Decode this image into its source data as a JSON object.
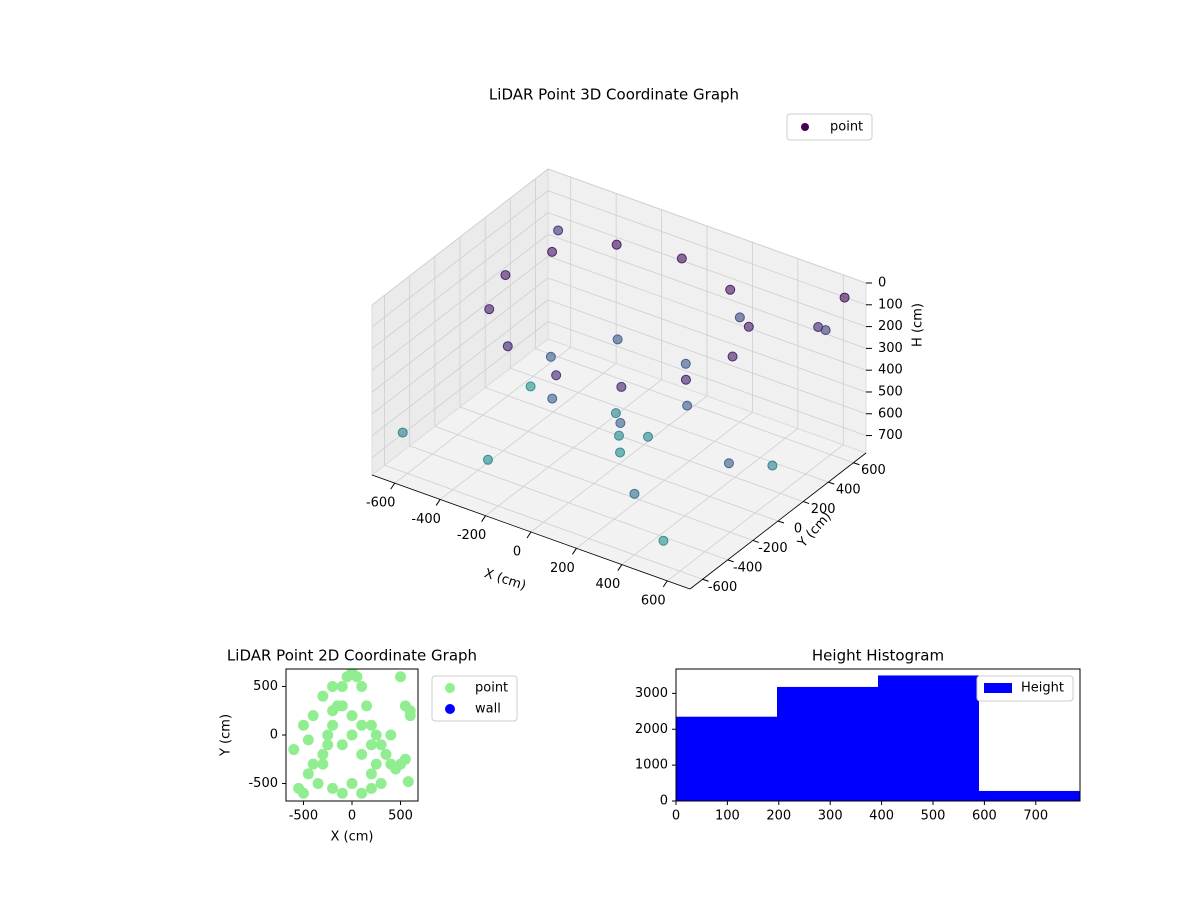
{
  "chart_data": [
    {
      "type": "scatter3d",
      "title": "LiDAR Point 3D Coordinate Graph",
      "xlabel": "X (cm)",
      "ylabel": "Y (cm)",
      "zlabel": "H (cm)",
      "colormap": "viridis",
      "legend": "upper right",
      "series": [
        {
          "name": "point",
          "color": "#440154",
          "x": [
            500,
            433,
            250,
            0,
            -250,
            -433,
            -500,
            -433,
            -250,
            0,
            250,
            433,
            300,
            150,
            -150,
            -300,
            -150,
            150,
            0,
            100,
            -80,
            60,
            650,
            600,
            550,
            -620,
            -500,
            400,
            650,
            -300,
            200,
            -600,
            620,
            500
          ],
          "y": [
            0,
            250,
            433,
            500,
            433,
            250,
            0,
            -250,
            -433,
            -500,
            -433,
            -250,
            0,
            260,
            260,
            0,
            -260,
            -260,
            0,
            50,
            120,
            -100,
            620,
            500,
            650,
            -600,
            200,
            -600,
            -300,
            -500,
            600,
            600,
            100,
            -550
          ],
          "h": [
            100,
            100,
            80,
            60,
            60,
            80,
            100,
            120,
            140,
            150,
            140,
            120,
            400,
            380,
            380,
            400,
            420,
            420,
            650,
            640,
            630,
            660,
            50,
            150,
            250,
            600,
            700,
            500,
            400,
            650,
            300,
            200,
            600,
            700
          ]
        }
      ],
      "xlim": [
        -700,
        700
      ],
      "ylim": [
        -700,
        700
      ],
      "zlim": [
        780,
        0
      ],
      "xticks": [
        -600,
        -400,
        -200,
        0,
        200,
        400,
        600
      ],
      "yticks": [
        -600,
        -400,
        -200,
        0,
        200,
        400,
        600
      ],
      "zticks": [
        0,
        100,
        200,
        300,
        400,
        500,
        600,
        700
      ]
    },
    {
      "type": "scatter",
      "title": "LiDAR Point 2D Coordinate Graph",
      "xlabel": "X (cm)",
      "ylabel": "Y (cm)",
      "legend": "outside right",
      "series": [
        {
          "name": "point",
          "color": "#90ee90",
          "x": [
            -600,
            -550,
            -500,
            -450,
            -400,
            -350,
            -300,
            -250,
            -200,
            -150,
            -100,
            -50,
            0,
            50,
            100,
            150,
            200,
            250,
            300,
            350,
            400,
            450,
            500,
            550,
            600,
            -400,
            -300,
            -200,
            -100,
            0,
            100,
            200,
            300,
            -300,
            -200,
            -100,
            0,
            100,
            200,
            -500,
            -450,
            550,
            600,
            500,
            -250,
            250,
            0,
            100,
            -100,
            -200,
            200,
            400,
            580
          ],
          "y": [
            -150,
            -550,
            -600,
            -400,
            -300,
            -500,
            -200,
            -100,
            100,
            300,
            500,
            600,
            650,
            600,
            500,
            300,
            100,
            0,
            -100,
            -200,
            -300,
            -350,
            -300,
            -250,
            250,
            200,
            400,
            500,
            300,
            0,
            -200,
            -400,
            -500,
            -300,
            -550,
            -600,
            -500,
            -600,
            -550,
            100,
            -50,
            300,
            200,
            600,
            0,
            -300,
            200,
            100,
            -100,
            250,
            -100,
            0,
            -480
          ]
        },
        {
          "name": "wall",
          "color": "#0000ff",
          "x": [],
          "y": []
        }
      ],
      "xlim": [
        -680,
        680
      ],
      "ylim": [
        -680,
        680
      ],
      "xticks": [
        -500,
        0,
        500
      ],
      "yticks": [
        -500,
        0,
        500
      ]
    },
    {
      "type": "histogram",
      "title": "Height Histogram",
      "name": "Height",
      "color": "#0000ff",
      "legend": "upper right",
      "bins": [
        0,
        196.5,
        393,
        589.5,
        786
      ],
      "counts": [
        2350,
        3180,
        3500,
        280
      ],
      "xlim": [
        0,
        786
      ],
      "ylim": [
        0,
        3680
      ],
      "xticks": [
        0,
        100,
        200,
        300,
        400,
        500,
        600,
        700
      ],
      "yticks": [
        0,
        1000,
        2000,
        3000
      ]
    }
  ]
}
